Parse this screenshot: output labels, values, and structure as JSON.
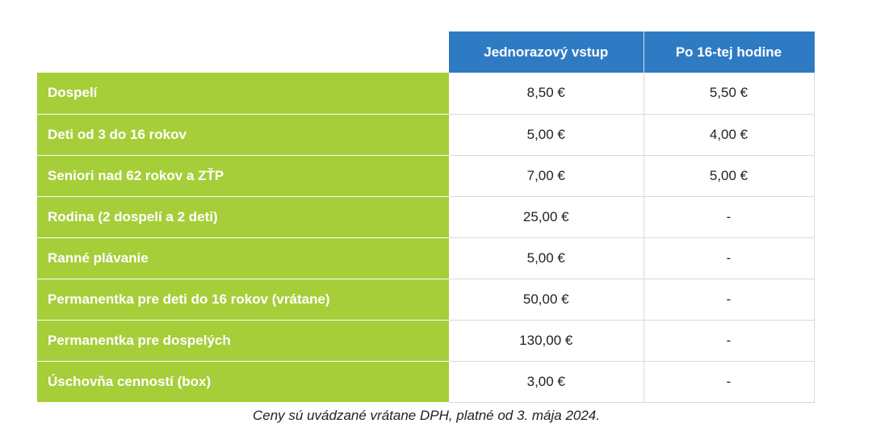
{
  "table": {
    "columns": [
      "Jednorazový vstup",
      "Po 16-tej hodine"
    ],
    "rows": [
      {
        "label": "Dospelí",
        "single": "8,50 €",
        "after16": "5,50 €"
      },
      {
        "label": "Deti od 3 do 16 rokov",
        "single": "5,00 €",
        "after16": "4,00 €"
      },
      {
        "label": "Seniori nad 62 rokov a ZŤP",
        "single": "7,00 €",
        "after16": "5,00 €"
      },
      {
        "label": "Rodina (2 dospelí a 2 deti)",
        "single": "25,00 €",
        "after16": "-"
      },
      {
        "label": "Ranné plávanie",
        "single": "5,00 €",
        "after16": "-"
      },
      {
        "label": "Permanentka pre deti do 16 rokov (vrátane)",
        "single": "50,00 €",
        "after16": "-"
      },
      {
        "label": "Permanentka pre dospelých",
        "single": "130,00 €",
        "after16": "-"
      },
      {
        "label": "Úschovňa cenností (box)",
        "single": "3,00 €",
        "after16": "-"
      }
    ]
  },
  "note": "Ceny sú uvádzané vrátane DPH, platné od 3. mája 2024.",
  "colors": {
    "header_blue": "#2e7bc4",
    "label_green": "#a6ce39"
  }
}
